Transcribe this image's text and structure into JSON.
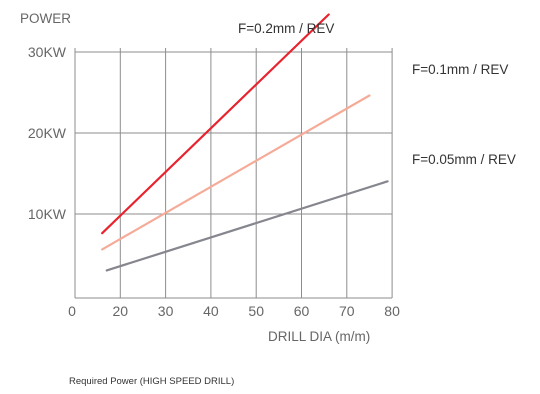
{
  "chart_data": {
    "type": "line",
    "ylabel": "POWER",
    "xlabel": "DRILL DIA (m/m)",
    "caption": "Required Power (HIGH SPEED DRILL)",
    "xlim": [
      0,
      80
    ],
    "ylim": [
      0,
      35
    ],
    "grid": true,
    "x_ticks": [
      "0",
      "20",
      "30",
      "40",
      "50",
      "60",
      "70",
      "80"
    ],
    "x_tick_values": [
      0,
      20,
      30,
      40,
      50,
      60,
      70,
      80
    ],
    "y_ticks": [
      "10KW",
      "20KW",
      "30KW"
    ],
    "y_tick_values": [
      10,
      20,
      30
    ],
    "series": [
      {
        "name": "F=0.2mm / REV",
        "color": "#e8232e",
        "points": [
          [
            16,
            8.0
          ],
          [
            66,
            35.0
          ]
        ]
      },
      {
        "name": "F=0.1mm / REV",
        "color": "#f5ab98",
        "points": [
          [
            16,
            6.0
          ],
          [
            75,
            25.0
          ]
        ]
      },
      {
        "name": "F=0.05mm / REV",
        "color": "#85868e",
        "points": [
          [
            17,
            3.4
          ],
          [
            79,
            14.4
          ]
        ]
      }
    ]
  }
}
